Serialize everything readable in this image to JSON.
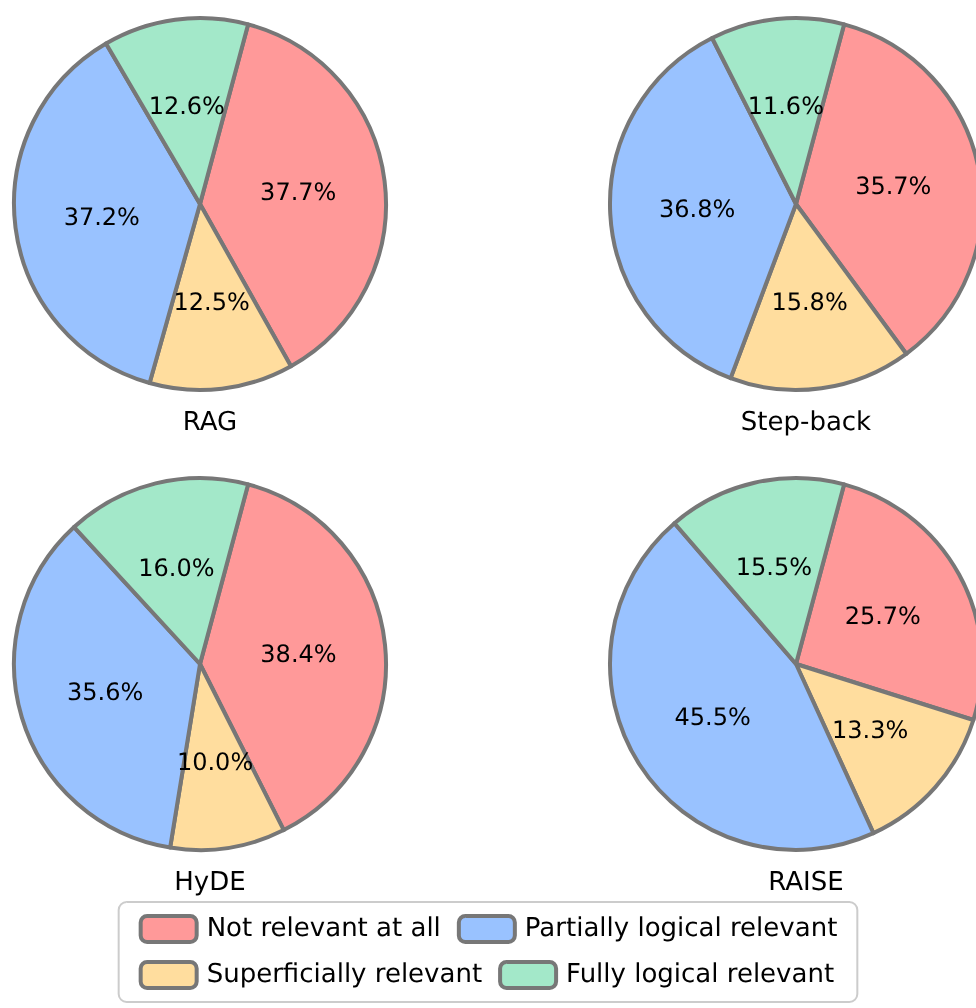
{
  "chart_data": {
    "type": "pie",
    "categories": [
      "Not relevant at all",
      "Superficially relevant",
      "Partially logical relevant",
      "Fully logical relevant"
    ],
    "colors": [
      "#ff9999",
      "#ffdd9e",
      "#99c2ff",
      "#a3e8c9"
    ],
    "legend": "bottom",
    "series": [
      {
        "name": "RAG",
        "values": [
          37.7,
          12.5,
          37.2,
          12.6
        ],
        "value_labels": [
          "37.7%",
          "12.5%",
          "37.2%",
          "12.6%"
        ]
      },
      {
        "name": "Step-back",
        "values": [
          35.7,
          15.8,
          36.8,
          11.6
        ],
        "value_labels": [
          "35.7%",
          "15.8%",
          "36.8%",
          "11.6%"
        ]
      },
      {
        "name": "HyDE",
        "values": [
          38.4,
          10.0,
          35.6,
          16.0
        ],
        "value_labels": [
          "38.4%",
          "10.0%",
          "35.6%",
          "16.0%"
        ]
      },
      {
        "name": "RAISE",
        "values": [
          25.7,
          13.3,
          45.5,
          15.5
        ],
        "value_labels": [
          "25.7%",
          "13.3%",
          "45.5%",
          "15.5%"
        ]
      }
    ]
  }
}
